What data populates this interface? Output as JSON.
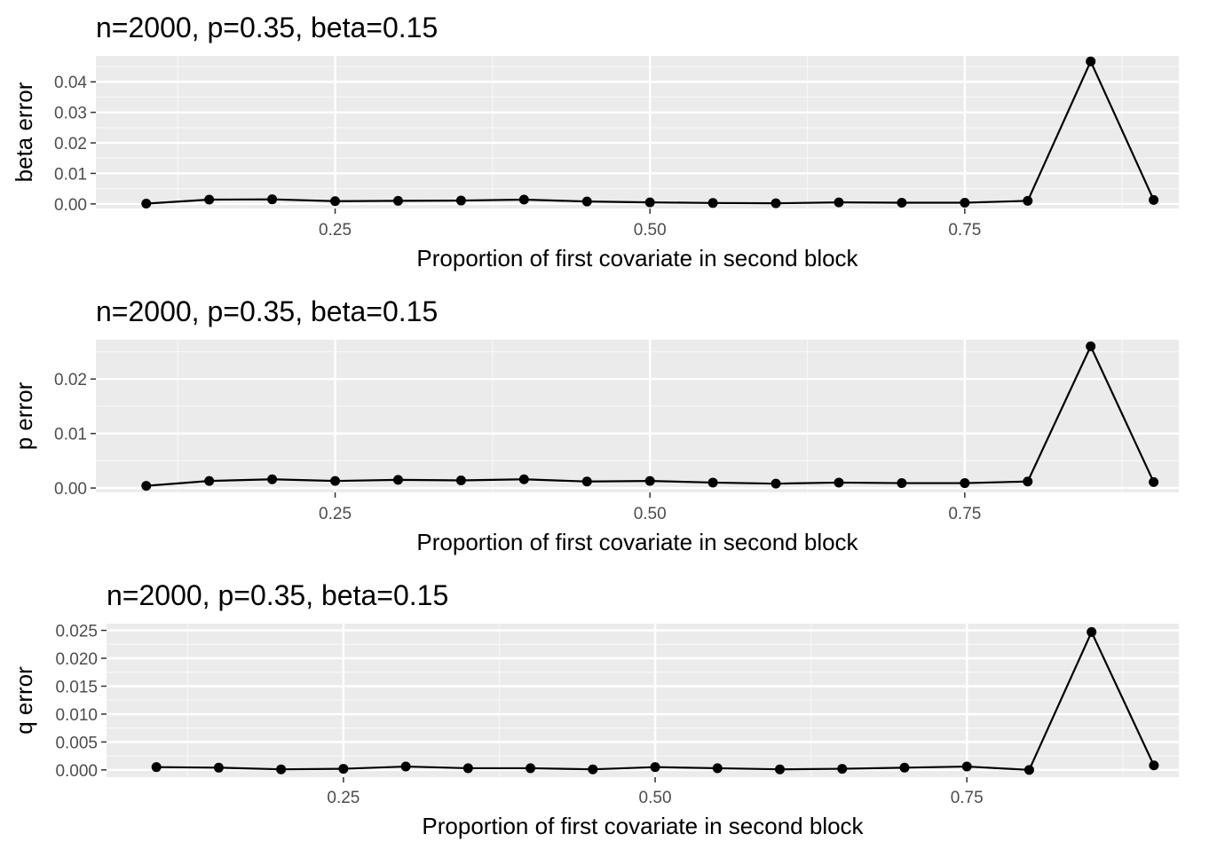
{
  "colors": {
    "panel_bg": "#EBEBEB",
    "grid_major": "#FFFFFF",
    "grid_minor": "#F7F7F7",
    "line": "#000000",
    "tick_text": "#4D4D4D"
  },
  "chart_data": [
    {
      "type": "line",
      "title": "n=2000, p=0.35, beta=0.15",
      "xlabel": "Proportion of first covariate in second block",
      "ylabel": "beta error",
      "grid": true,
      "xlim": [
        0.06,
        0.92
      ],
      "ylim": [
        -0.0015,
        0.0485
      ],
      "x_ticks": [
        0.25,
        0.5,
        0.75
      ],
      "x_tick_labels": [
        "0.25",
        "0.50",
        "0.75"
      ],
      "y_ticks": [
        0.0,
        0.01,
        0.02,
        0.03,
        0.04
      ],
      "y_tick_labels": [
        "0.00",
        "0.01",
        "0.02",
        "0.03",
        "0.04"
      ],
      "x": [
        0.1,
        0.15,
        0.2,
        0.25,
        0.3,
        0.35,
        0.4,
        0.45,
        0.5,
        0.55,
        0.6,
        0.65,
        0.7,
        0.75,
        0.8,
        0.85,
        0.9
      ],
      "y": [
        0.0001,
        0.0014,
        0.0015,
        0.0009,
        0.001,
        0.0011,
        0.0014,
        0.0008,
        0.0005,
        0.0003,
        0.0002,
        0.0005,
        0.0004,
        0.0004,
        0.001,
        0.0467,
        0.0013
      ]
    },
    {
      "type": "line",
      "title": "n=2000, p=0.35, beta=0.15",
      "xlabel": "Proportion of first covariate in second block",
      "ylabel": "p error",
      "grid": true,
      "xlim": [
        0.06,
        0.92
      ],
      "ylim": [
        -0.0008,
        0.0272
      ],
      "x_ticks": [
        0.25,
        0.5,
        0.75
      ],
      "x_tick_labels": [
        "0.25",
        "0.50",
        "0.75"
      ],
      "y_ticks": [
        0.0,
        0.01,
        0.02
      ],
      "y_tick_labels": [
        "0.00",
        "0.01",
        "0.02"
      ],
      "x": [
        0.1,
        0.15,
        0.2,
        0.25,
        0.3,
        0.35,
        0.4,
        0.45,
        0.5,
        0.55,
        0.6,
        0.65,
        0.7,
        0.75,
        0.8,
        0.85,
        0.9
      ],
      "y": [
        0.0004,
        0.0013,
        0.0016,
        0.0013,
        0.0015,
        0.0014,
        0.0016,
        0.0012,
        0.0013,
        0.001,
        0.0008,
        0.001,
        0.0009,
        0.0009,
        0.0012,
        0.026,
        0.0011
      ]
    },
    {
      "type": "line",
      "title": "n=2000, p=0.35, beta=0.15",
      "xlabel": "Proportion of first covariate in second block",
      "ylabel": "q error",
      "grid": true,
      "xlim": [
        0.06,
        0.92
      ],
      "ylim": [
        -0.0013,
        0.0262
      ],
      "x_ticks": [
        0.25,
        0.5,
        0.75
      ],
      "x_tick_labels": [
        "0.25",
        "0.50",
        "0.75"
      ],
      "y_ticks": [
        0.0,
        0.005,
        0.01,
        0.015,
        0.02,
        0.025
      ],
      "y_tick_labels": [
        "0.000",
        "0.005",
        "0.010",
        "0.015",
        "0.020",
        "0.025"
      ],
      "x": [
        0.1,
        0.15,
        0.2,
        0.25,
        0.3,
        0.35,
        0.4,
        0.45,
        0.5,
        0.55,
        0.6,
        0.65,
        0.7,
        0.75,
        0.8,
        0.85,
        0.9
      ],
      "y": [
        0.0005,
        0.0004,
        0.0001,
        0.0002,
        0.0006,
        0.0003,
        0.0003,
        0.0001,
        0.0005,
        0.0003,
        0.0001,
        0.0002,
        0.0004,
        0.0006,
        0.0,
        0.0247,
        0.0008
      ]
    }
  ]
}
